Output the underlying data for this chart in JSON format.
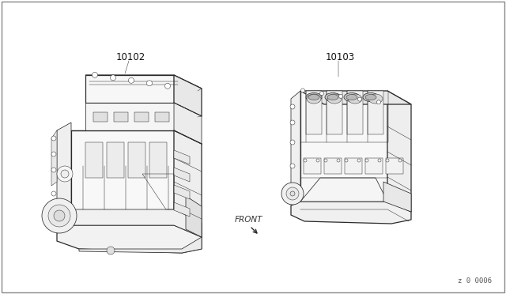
{
  "background_color": "#ffffff",
  "label_10102": "10102",
  "label_10103": "10103",
  "front_label": "FRONT",
  "ref_number": "z 0 0006",
  "fig_width": 6.4,
  "fig_height": 3.72,
  "dpi": 100,
  "line_color": "#2a2a2a",
  "lw_main": 0.9,
  "lw_detail": 0.55,
  "lw_thin": 0.35
}
